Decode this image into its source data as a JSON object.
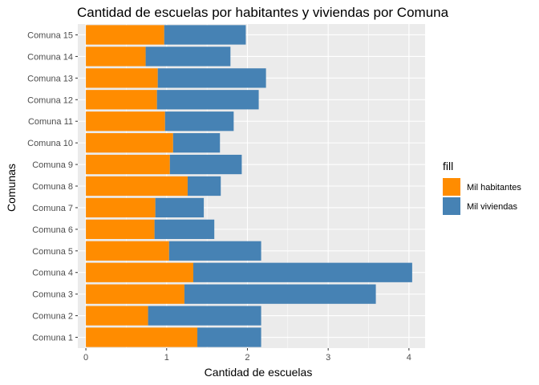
{
  "chart_data": {
    "type": "bar",
    "orientation": "horizontal",
    "stacked": true,
    "title": "Cantidad de escuelas por habitantes y viviendas por Comuna",
    "xlabel": "Cantidad de escuelas",
    "ylabel": "Comunas",
    "xlim": [
      -0.1,
      4.2
    ],
    "xticks": [
      "0",
      "1",
      "2",
      "3",
      "4"
    ],
    "categories": [
      "Comuna 1",
      "Comuna 2",
      "Comuna 3",
      "Comuna 4",
      "Comuna 5",
      "Comuna 6",
      "Comuna 7",
      "Comuna 8",
      "Comuna 9",
      "Comuna 10",
      "Comuna 11",
      "Comuna 12",
      "Comuna 13",
      "Comuna 14",
      "Comuna 15"
    ],
    "series": [
      {
        "name": "Mil habitantes",
        "color": "#FF8C00",
        "values": [
          1.38,
          0.77,
          1.22,
          1.33,
          1.03,
          0.85,
          0.86,
          1.26,
          1.04,
          1.08,
          0.98,
          0.88,
          0.89,
          0.74,
          0.97
        ]
      },
      {
        "name": "Mil viviendas",
        "color": "#4682B4",
        "values": [
          0.79,
          1.4,
          2.37,
          2.71,
          1.14,
          0.74,
          0.6,
          0.41,
          0.89,
          0.58,
          0.85,
          1.26,
          1.34,
          1.05,
          1.01
        ]
      }
    ],
    "grid": true,
    "legend": {
      "title": "fill",
      "position": "right"
    },
    "panel_background": "#EBEBEB",
    "grid_color": "#FFFFFF"
  }
}
